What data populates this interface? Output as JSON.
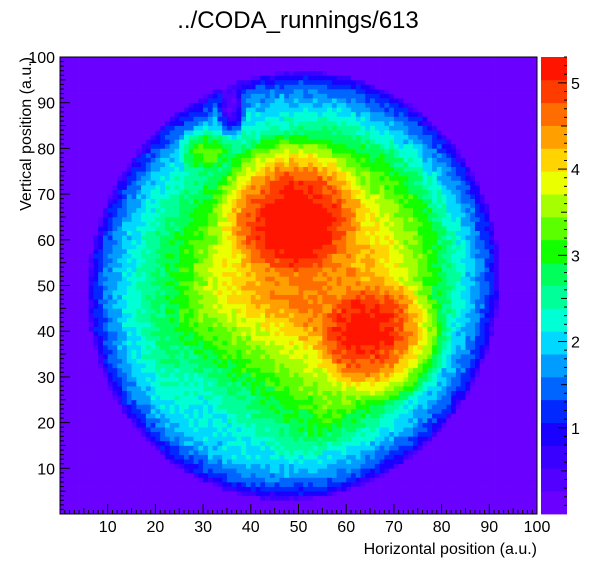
{
  "chart_data": {
    "type": "heatmap",
    "title": "../CODA_runnings/613",
    "xlabel": "Horizontal position (a.u.)",
    "ylabel": "Vertical position (a.u.)",
    "xlim": [
      0,
      100
    ],
    "ylim": [
      0,
      100
    ],
    "xticks": [
      10,
      20,
      30,
      40,
      50,
      60,
      70,
      80,
      90,
      100
    ],
    "yticks": [
      10,
      20,
      30,
      40,
      50,
      60,
      70,
      80,
      90,
      100
    ],
    "zlim": [
      0,
      5.3
    ],
    "zticks": [
      1,
      2,
      3,
      4,
      5
    ],
    "grid": false,
    "colorbar": "right",
    "bins": {
      "nx": 100,
      "ny": 100,
      "outside_value": 0.2,
      "features": [
        {
          "shape": "ellipse",
          "cx": 49,
          "cy": 50,
          "rx": 43,
          "ry": 47,
          "angle_deg": -12,
          "amplitude": 3.3
        },
        {
          "shape": "ellipse",
          "cx": 55,
          "cy": 50,
          "rx": 30,
          "ry": 38,
          "angle_deg": -15,
          "amplitude": 1.0
        },
        {
          "shape": "ellipse",
          "cx": 48,
          "cy": 68,
          "rx": 16,
          "ry": 16,
          "angle_deg": 0,
          "amplitude": 1.3
        },
        {
          "shape": "ellipse",
          "cx": 68,
          "cy": 38,
          "rx": 14,
          "ry": 14,
          "angle_deg": 0,
          "amplitude": 1.3
        },
        {
          "shape": "ellipse",
          "cx": 30,
          "cy": 80,
          "rx": 6,
          "ry": 5,
          "angle_deg": 0,
          "amplitude": 1.0
        },
        {
          "shape": "ellipse",
          "cx": 40,
          "cy": 30,
          "rx": 18,
          "ry": 18,
          "angle_deg": 0,
          "amplitude": -0.7
        },
        {
          "shape": "ellipse",
          "cx": 36,
          "cy": 88,
          "rx": 3,
          "ry": 6,
          "angle_deg": 0,
          "amplitude": -1.4
        }
      ]
    }
  }
}
